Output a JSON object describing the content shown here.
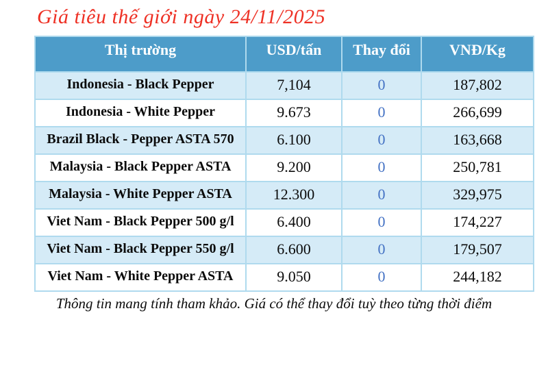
{
  "title": "Giá tiêu thế giới ngày 24/11/2025",
  "footnote": "Thông tin mang tính tham khảo. Giá có thể thay đổi tuỳ theo từng thời điểm",
  "colors": {
    "title_red": "#EE3024",
    "header_bg": "#4D9CC9",
    "row_shaded_bg": "#D5EBF7",
    "border": "#AFDAEE",
    "change_blue": "#4472C4"
  },
  "chart_data": {
    "type": "table",
    "title": "Giá tiêu thế giới ngày 24/11/2025",
    "columns": [
      "Thị trường",
      "USD/tấn",
      "Thay đổi",
      "VNĐ/Kg"
    ],
    "rows": [
      {
        "market": "Indonesia - Black Pepper",
        "usd_per_ton": "7,104",
        "change": "0",
        "vnd_per_kg": "187,802"
      },
      {
        "market": "Indonesia - White Pepper",
        "usd_per_ton": "9.673",
        "change": "0",
        "vnd_per_kg": "266,699"
      },
      {
        "market": "Brazil Black - Pepper ASTA 570",
        "usd_per_ton": "6.100",
        "change": "0",
        "vnd_per_kg": "163,668"
      },
      {
        "market": "Malaysia - Black Pepper ASTA",
        "usd_per_ton": "9.200",
        "change": "0",
        "vnd_per_kg": "250,781"
      },
      {
        "market": "Malaysia - White Pepper ASTA",
        "usd_per_ton": "12.300",
        "change": "0",
        "vnd_per_kg": "329,975"
      },
      {
        "market": "Viet Nam - Black Pepper 500 g/l",
        "usd_per_ton": "6.400",
        "change": "0",
        "vnd_per_kg": "174,227"
      },
      {
        "market": "Viet Nam - Black Pepper 550 g/l",
        "usd_per_ton": "6.600",
        "change": "0",
        "vnd_per_kg": "179,507"
      },
      {
        "market": "Viet Nam - White Pepper ASTA",
        "usd_per_ton": "9.050",
        "change": "0",
        "vnd_per_kg": "244,182"
      }
    ],
    "footnote": "Thông tin mang tính tham khảo. Giá có thể thay đổi tuỳ theo từng thời điểm"
  }
}
